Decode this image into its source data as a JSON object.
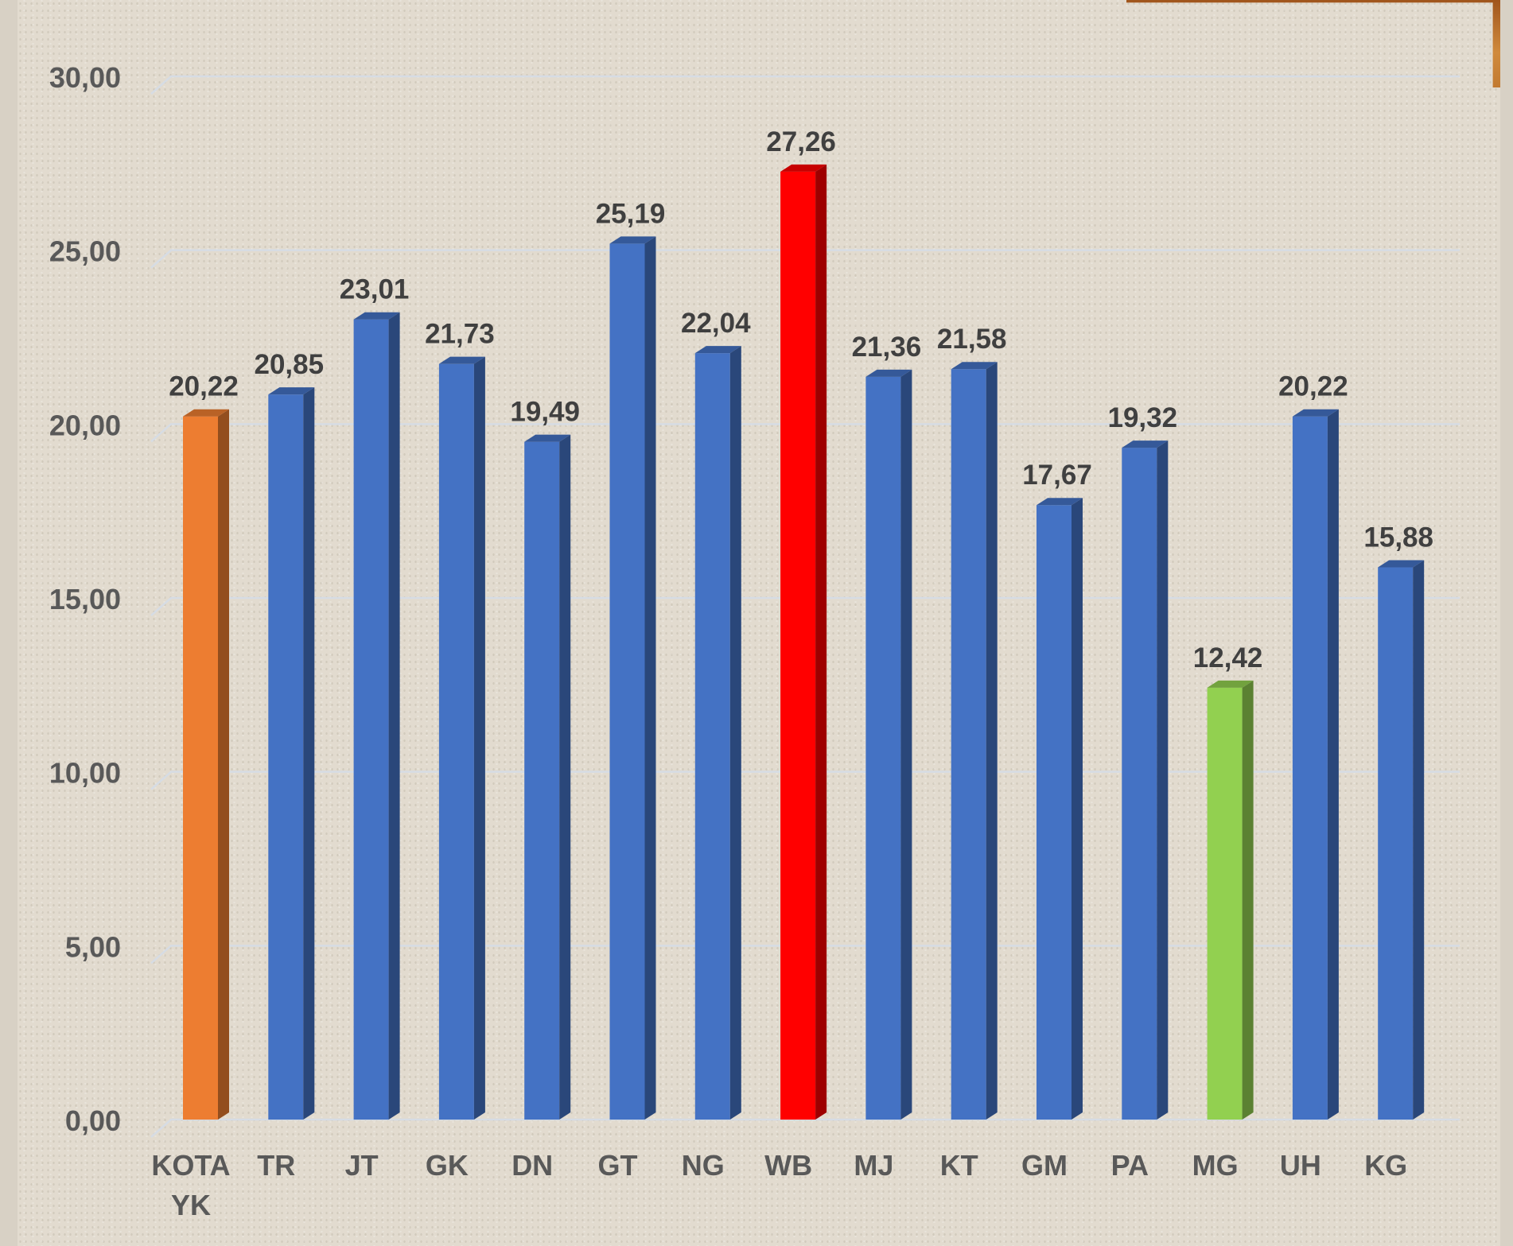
{
  "chart_data": {
    "type": "bar",
    "categories": [
      "KOTA YK",
      "TR",
      "JT",
      "GK",
      "DN",
      "GT",
      "NG",
      "WB",
      "MJ",
      "KT",
      "GM",
      "PA",
      "MG",
      "UH",
      "KG"
    ],
    "category_lines": [
      [
        "KOTA",
        "YK"
      ],
      [
        "TR"
      ],
      [
        "JT"
      ],
      [
        "GK"
      ],
      [
        "DN"
      ],
      [
        "GT"
      ],
      [
        "NG"
      ],
      [
        "WB"
      ],
      [
        "MJ"
      ],
      [
        "KT"
      ],
      [
        "GM"
      ],
      [
        "PA"
      ],
      [
        "MG"
      ],
      [
        "UH"
      ],
      [
        "KG"
      ]
    ],
    "values": [
      20.22,
      20.85,
      23.01,
      21.73,
      19.49,
      25.19,
      22.04,
      27.26,
      21.36,
      21.58,
      17.67,
      19.32,
      12.42,
      20.22,
      15.88
    ],
    "value_labels": [
      "20,22",
      "20,85",
      "23,01",
      "21,73",
      "19,49",
      "25,19",
      "22,04",
      "27,26",
      "21,36",
      "21,58",
      "17,67",
      "19,32",
      "12,42",
      "20,22",
      "15,88"
    ],
    "bar_colors": [
      "#ed7d31",
      "#4472c4",
      "#4472c4",
      "#4472c4",
      "#4472c4",
      "#4472c4",
      "#4472c4",
      "#ff0000",
      "#4472c4",
      "#4472c4",
      "#4472c4",
      "#4472c4",
      "#92d050",
      "#4472c4",
      "#4472c4"
    ],
    "title": "",
    "xlabel": "",
    "ylabel": "",
    "ylim": [
      0,
      30
    ],
    "yticks": [
      0,
      5,
      10,
      15,
      20,
      25,
      30
    ],
    "ytick_labels": [
      "0,00",
      "5,00",
      "10,00",
      "15,00",
      "20,00",
      "25,00",
      "30,00"
    ],
    "grid": true,
    "style": "3d-column"
  }
}
